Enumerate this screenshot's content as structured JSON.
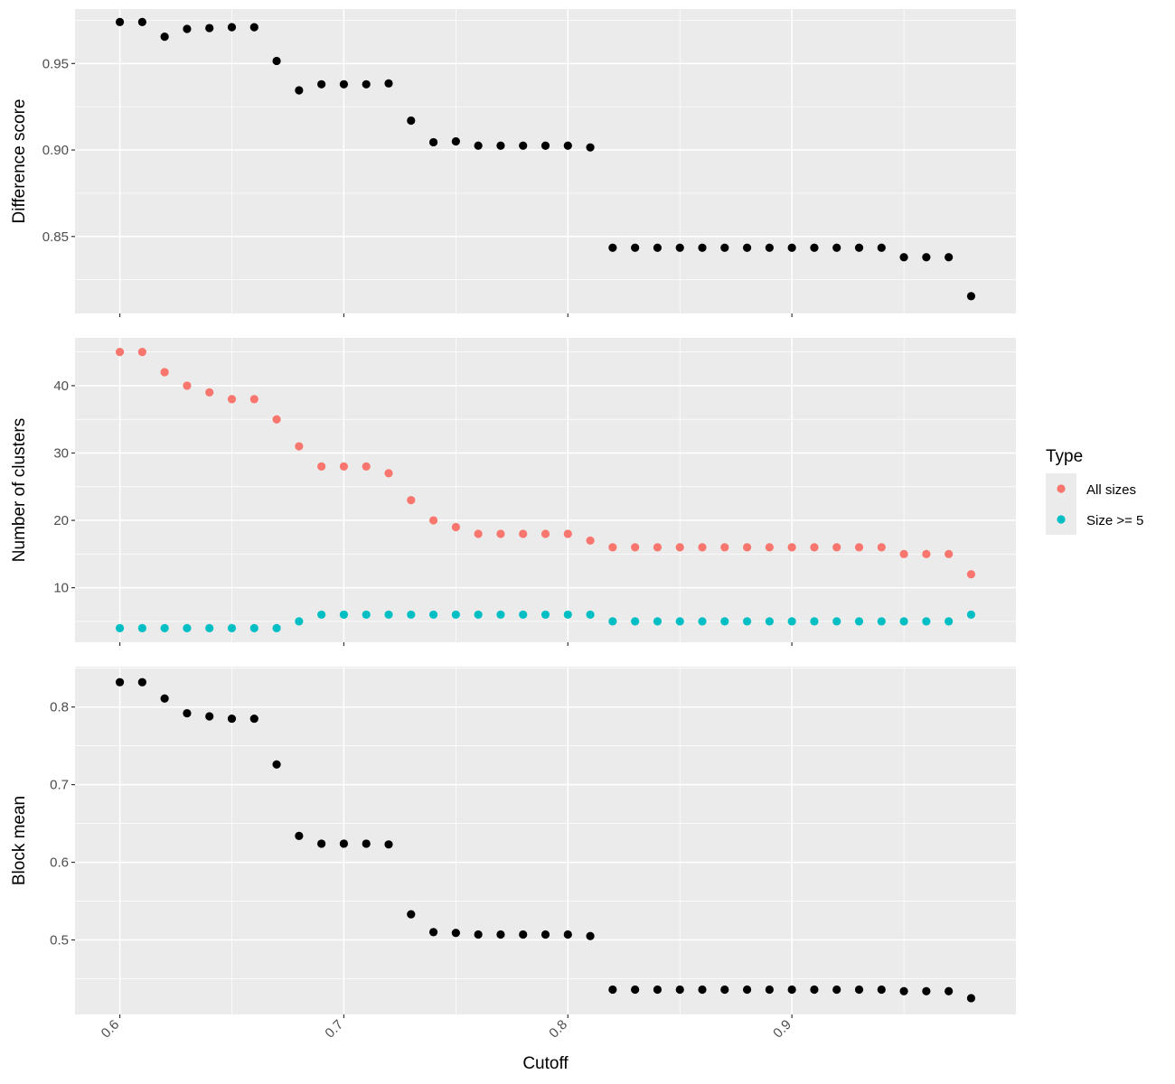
{
  "chart_data": [
    {
      "type": "scatter",
      "ylabel": "Difference score",
      "xlabel": "",
      "xlim": [
        0.58,
        1.0
      ],
      "ylim": [
        0.8055,
        0.9815
      ],
      "x_ticks": [
        0.6,
        0.7,
        0.8,
        0.9
      ],
      "y_ticks": [
        0.85,
        0.9,
        0.95
      ],
      "y_tick_labels": [
        "0.85",
        "0.90",
        "0.95"
      ],
      "grid": true,
      "color": "#000000",
      "series": [
        {
          "x": [
            0.6,
            0.61,
            0.62,
            0.63,
            0.64,
            0.65,
            0.66,
            0.67,
            0.68,
            0.69,
            0.7,
            0.71,
            0.72,
            0.73,
            0.74,
            0.75,
            0.76,
            0.77,
            0.78,
            0.79,
            0.8,
            0.81,
            0.82,
            0.83,
            0.84,
            0.85,
            0.86,
            0.87,
            0.88,
            0.89,
            0.9,
            0.91,
            0.92,
            0.93,
            0.94,
            0.95,
            0.96,
            0.97,
            0.98
          ],
          "y": [
            0.974,
            0.974,
            0.9655,
            0.97,
            0.9705,
            0.971,
            0.971,
            0.9515,
            0.9345,
            0.938,
            0.938,
            0.938,
            0.9385,
            0.917,
            0.9045,
            0.905,
            0.9025,
            0.9025,
            0.9025,
            0.9025,
            0.9025,
            0.9015,
            0.8435,
            0.8435,
            0.8435,
            0.8435,
            0.8435,
            0.8435,
            0.8435,
            0.8435,
            0.8435,
            0.8435,
            0.8435,
            0.8435,
            0.8435,
            0.838,
            0.838,
            0.838,
            0.8155
          ]
        }
      ]
    },
    {
      "type": "scatter",
      "ylabel": "Number of clusters",
      "xlabel": "",
      "xlim": [
        0.58,
        1.0
      ],
      "ylim": [
        1.9,
        47.1
      ],
      "x_ticks": [
        0.6,
        0.7,
        0.8,
        0.9
      ],
      "y_ticks": [
        10,
        20,
        30,
        40
      ],
      "y_tick_labels": [
        "10",
        "20",
        "30",
        "40"
      ],
      "grid": true,
      "legend": {
        "title": "Type",
        "position": "right",
        "entries": [
          {
            "label": "All sizes",
            "color": "#F8766D"
          },
          {
            "label": "Size >= 5",
            "color": "#00BFC4"
          }
        ]
      },
      "series": [
        {
          "name": "All sizes",
          "color": "#F8766D",
          "x": [
            0.6,
            0.61,
            0.62,
            0.63,
            0.64,
            0.65,
            0.66,
            0.67,
            0.68,
            0.69,
            0.7,
            0.71,
            0.72,
            0.73,
            0.74,
            0.75,
            0.76,
            0.77,
            0.78,
            0.79,
            0.8,
            0.81,
            0.82,
            0.83,
            0.84,
            0.85,
            0.86,
            0.87,
            0.88,
            0.89,
            0.9,
            0.91,
            0.92,
            0.93,
            0.94,
            0.95,
            0.96,
            0.97,
            0.98
          ],
          "y": [
            45,
            45,
            42,
            40,
            39,
            38,
            38,
            35,
            31,
            28,
            28,
            28,
            27,
            23,
            20,
            19,
            18,
            18,
            18,
            18,
            18,
            17,
            16,
            16,
            16,
            16,
            16,
            16,
            16,
            16,
            16,
            16,
            16,
            16,
            16,
            15,
            15,
            15,
            12
          ]
        },
        {
          "name": "Size >= 5",
          "color": "#00BFC4",
          "x": [
            0.6,
            0.61,
            0.62,
            0.63,
            0.64,
            0.65,
            0.66,
            0.67,
            0.68,
            0.69,
            0.7,
            0.71,
            0.72,
            0.73,
            0.74,
            0.75,
            0.76,
            0.77,
            0.78,
            0.79,
            0.8,
            0.81,
            0.82,
            0.83,
            0.84,
            0.85,
            0.86,
            0.87,
            0.88,
            0.89,
            0.9,
            0.91,
            0.92,
            0.93,
            0.94,
            0.95,
            0.96,
            0.97,
            0.98
          ],
          "y": [
            4,
            4,
            4,
            4,
            4,
            4,
            4,
            4,
            5,
            6,
            6,
            6,
            6,
            6,
            6,
            6,
            6,
            6,
            6,
            6,
            6,
            6,
            5,
            5,
            5,
            5,
            5,
            5,
            5,
            5,
            5,
            5,
            5,
            5,
            5,
            5,
            5,
            5,
            6
          ]
        }
      ]
    },
    {
      "type": "scatter",
      "ylabel": "Block mean",
      "xlabel": "Cutoff",
      "xlim": [
        0.58,
        1.0
      ],
      "ylim": [
        0.404,
        0.852
      ],
      "x_ticks": [
        0.6,
        0.7,
        0.8,
        0.9
      ],
      "x_tick_labels": [
        "0.6",
        "0.7",
        "0.8",
        "0.9"
      ],
      "y_ticks": [
        0.5,
        0.6,
        0.7,
        0.8
      ],
      "y_tick_labels": [
        "0.5",
        "0.6",
        "0.7",
        "0.8"
      ],
      "grid": true,
      "color": "#000000",
      "series": [
        {
          "x": [
            0.6,
            0.61,
            0.62,
            0.63,
            0.64,
            0.65,
            0.66,
            0.67,
            0.68,
            0.69,
            0.7,
            0.71,
            0.72,
            0.73,
            0.74,
            0.75,
            0.76,
            0.77,
            0.78,
            0.79,
            0.8,
            0.81,
            0.82,
            0.83,
            0.84,
            0.85,
            0.86,
            0.87,
            0.88,
            0.89,
            0.9,
            0.91,
            0.92,
            0.93,
            0.94,
            0.95,
            0.96,
            0.97,
            0.98
          ],
          "y": [
            0.832,
            0.832,
            0.811,
            0.792,
            0.788,
            0.785,
            0.785,
            0.726,
            0.634,
            0.624,
            0.624,
            0.624,
            0.623,
            0.533,
            0.51,
            0.509,
            0.507,
            0.507,
            0.507,
            0.507,
            0.507,
            0.505,
            0.436,
            0.436,
            0.436,
            0.436,
            0.436,
            0.436,
            0.436,
            0.436,
            0.436,
            0.436,
            0.436,
            0.436,
            0.436,
            0.434,
            0.434,
            0.434,
            0.425
          ]
        }
      ]
    }
  ]
}
